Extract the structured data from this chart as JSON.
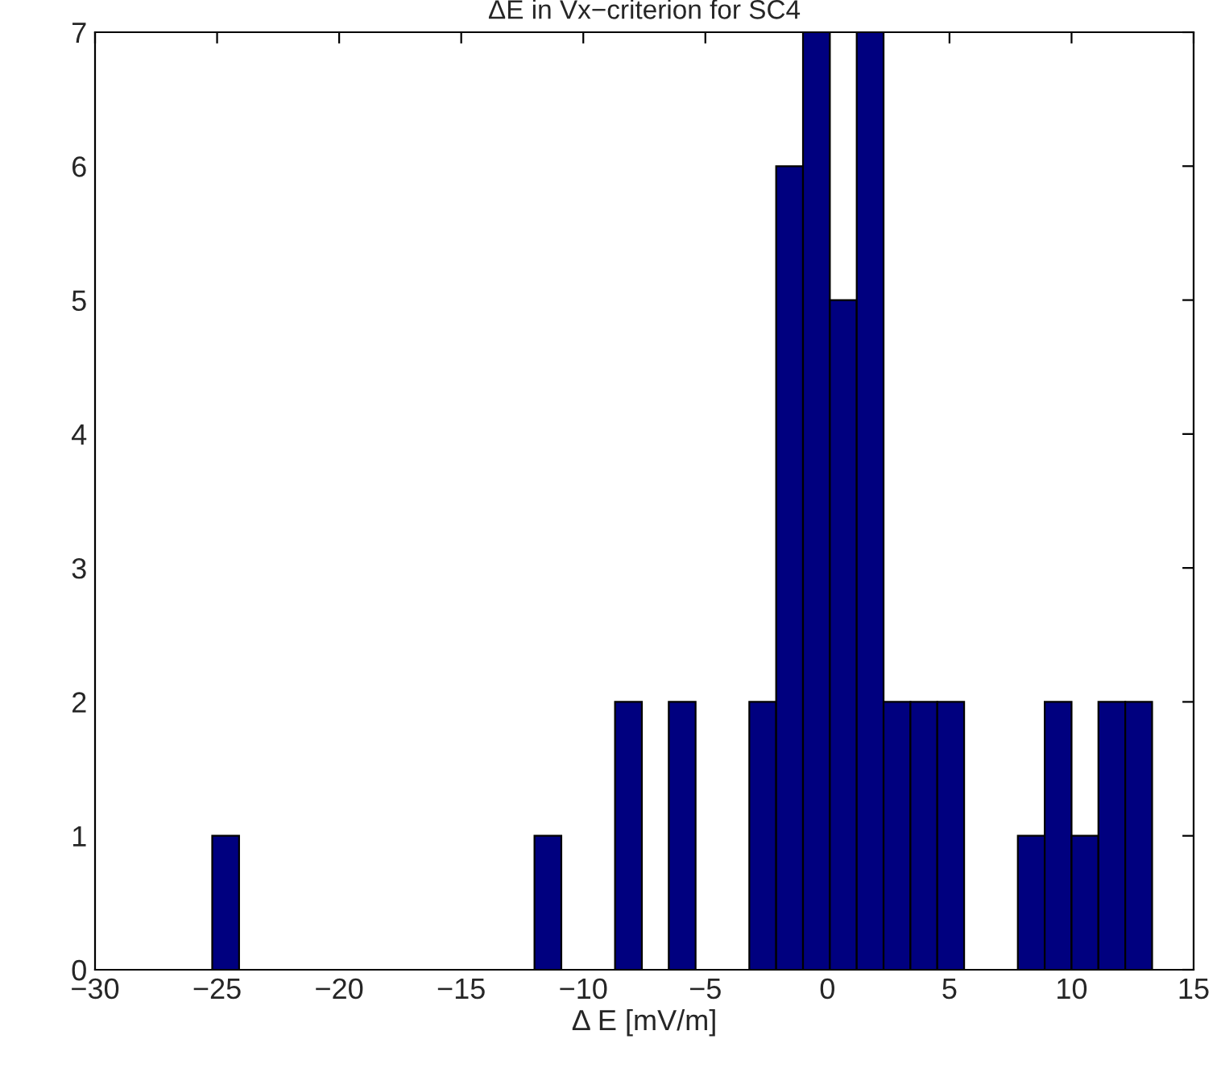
{
  "chart_data": {
    "type": "histogram",
    "title": "ΔE in Vx−criterion for SC4",
    "xlabel": "Δ E [mV/m]",
    "bins": [
      -25.2,
      -24.1,
      -23.0,
      -21.9,
      -20.8,
      -19.7,
      -18.6,
      -17.5,
      -16.4,
      -15.3,
      -14.2,
      -13.1,
      -12.0,
      -10.9,
      -9.8,
      -8.7,
      -7.6,
      -6.5,
      -5.4,
      -4.3,
      -3.2,
      -2.1,
      -1.0,
      0.1,
      1.2,
      2.3,
      3.4,
      4.5,
      5.6,
      6.7,
      7.8,
      8.9,
      10.0,
      11.1,
      12.2,
      13.3
    ],
    "values": [
      1,
      0,
      0,
      0,
      0,
      0,
      0,
      0,
      0,
      0,
      0,
      0,
      1,
      0,
      0,
      2,
      0,
      2,
      0,
      0,
      2,
      6,
      7,
      5,
      7,
      2,
      2,
      2,
      0,
      0,
      1,
      2,
      1,
      2,
      2
    ],
    "color": "#00007f",
    "xlim": [
      -30,
      15
    ],
    "xticks": [
      {
        "value": -30,
        "label": "−30"
      },
      {
        "value": -25,
        "label": "−25"
      },
      {
        "value": -20,
        "label": "−20"
      },
      {
        "value": -15,
        "label": "−15"
      },
      {
        "value": -10,
        "label": "−10"
      },
      {
        "value": -5,
        "label": "−5"
      },
      0,
      5,
      10,
      15
    ],
    "ylim": [
      0,
      7
    ],
    "yticks": [
      0,
      1,
      2,
      3,
      4,
      5,
      6,
      7
    ],
    "grid": false
  }
}
